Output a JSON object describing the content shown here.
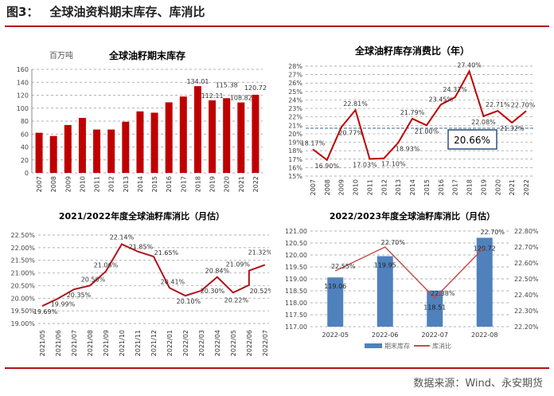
{
  "header": {
    "figure_no": "图3：",
    "title": "全球油资料期末库存、库消比"
  },
  "footer": {
    "source": "数据来源：Wind、永安期货"
  },
  "colors": {
    "red": "#c00000",
    "line": "#b0121b",
    "blue": "#4f81bd",
    "line2": "#c0504d"
  },
  "chart_data": [
    {
      "type": "bar",
      "title": "全球油籽期末库存",
      "unit": "百万吨",
      "categories": [
        "2007",
        "2008",
        "2009",
        "2010",
        "2011",
        "2012",
        "2013",
        "2014",
        "2015",
        "2016",
        "2017",
        "2018",
        "2019",
        "2020",
        "2021",
        "2022"
      ],
      "values": [
        62,
        57,
        74,
        85,
        67,
        67,
        79,
        95,
        93,
        109,
        118,
        134.01,
        112.11,
        115.38,
        108.82,
        120.72
      ],
      "labels": {
        "11": "134.01",
        "12": "112.11",
        "13": "115.38",
        "14": "108.82",
        "15": "120.72"
      },
      "ylim": [
        0,
        160
      ],
      "yticks": [
        "0",
        "20",
        "40",
        "60",
        "80",
        "100",
        "120",
        "140",
        "160"
      ]
    },
    {
      "type": "line",
      "title": "全球油籽库存消费比（年）",
      "categories": [
        "2007",
        "2008",
        "2009",
        "2010",
        "2011",
        "2012",
        "2013",
        "2014",
        "2015",
        "2016",
        "2017",
        "2018",
        "2019",
        "2020",
        "2021",
        "2022"
      ],
      "values": [
        18.17,
        16.9,
        20.77,
        22.81,
        17.03,
        17.1,
        18.93,
        21.79,
        21.0,
        23.45,
        24.32,
        27.4,
        22.08,
        22.71,
        21.32,
        22.7
      ],
      "labels": [
        "18.17%",
        "16.90%",
        "20.77%",
        "22.81%",
        "17.03%",
        "17.10%",
        "18.93%",
        "21.79%",
        "21.00%",
        "23.45%",
        "24.32%",
        "27.40%",
        "22.08%",
        "22.71%",
        "21.32%",
        "22.70%"
      ],
      "ylim": [
        15,
        28
      ],
      "yticks": [
        "15%",
        "16%",
        "17%",
        "18%",
        "19%",
        "20%",
        "21%",
        "22%",
        "23%",
        "24%",
        "25%",
        "26%",
        "27%",
        "28%"
      ],
      "reference": {
        "value": 20.66,
        "label": "20.66%"
      }
    },
    {
      "type": "line",
      "title": "2021/2022年度全球油籽库消比（月估）",
      "categories": [
        "2021/05",
        "2021/06",
        "2021/07",
        "2021/08",
        "2021/09",
        "2021/10",
        "2021/11",
        "2021/12",
        "2022/01",
        "2022/02",
        "2022/03",
        "2022/04",
        "2022/05",
        "2022/06",
        "2022/07"
      ],
      "x": [
        0,
        1,
        2,
        3,
        4,
        5,
        6,
        7,
        8,
        9,
        10,
        11,
        12,
        13,
        13,
        14
      ],
      "values": [
        19.69,
        19.99,
        20.35,
        20.5,
        21.06,
        22.14,
        21.85,
        21.65,
        20.41,
        20.1,
        20.3,
        20.84,
        20.22,
        20.52,
        21.09,
        21.32
      ],
      "labels": [
        "19.69%",
        "19.99%",
        "20.35%",
        "20.50%",
        "21.06%",
        "22.14%",
        "21.85%",
        "21.65%",
        "20.41%",
        "20.10%",
        "20.30%",
        "20.84%",
        "20.22%",
        "20.52%",
        "21.09%",
        "21.32%"
      ],
      "ylim": [
        19,
        22.5
      ],
      "yticks": [
        "19.00%",
        "19.50%",
        "20.00%",
        "20.50%",
        "21.00%",
        "21.50%",
        "22.00%",
        "22.50%"
      ]
    },
    {
      "type": "bar+line",
      "title": "2022/2023年度全球油籽库消比（月估）",
      "categories": [
        "2022-05",
        "2022-06",
        "2022-07",
        "2022-08"
      ],
      "series": [
        {
          "name": "期末库存",
          "axis": "left",
          "values": [
            119.06,
            119.95,
            118.51,
            120.72
          ],
          "labels": [
            "119.06",
            "119.95",
            "118.51",
            "120.72"
          ]
        },
        {
          "name": "库消比",
          "axis": "right",
          "values": [
            22.55,
            22.7,
            22.38,
            22.7
          ],
          "labels": [
            "22.55%",
            "22.70%",
            "22.38%",
            "22.70%"
          ]
        }
      ],
      "ylim": [
        117,
        121
      ],
      "yticks": [
        "117.00",
        "117.50",
        "118.00",
        "118.50",
        "119.00",
        "119.50",
        "120.00",
        "120.50",
        "121.00"
      ],
      "y2lim": [
        22.2,
        22.8
      ],
      "y2ticks": [
        "22.20%",
        "22.30%",
        "22.40%",
        "22.50%",
        "22.60%",
        "22.70%",
        "22.80%"
      ]
    }
  ]
}
